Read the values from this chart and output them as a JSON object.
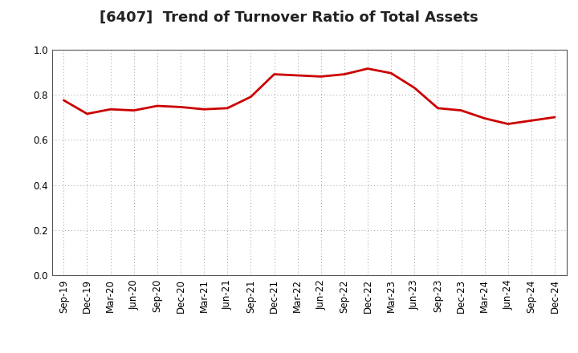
{
  "title": "[6407]  Trend of Turnover Ratio of Total Assets",
  "line_color": "#cc0000",
  "line_width": 2.0,
  "background_color": "#ffffff",
  "grid_color": "#999999",
  "ylim": [
    0.0,
    1.0
  ],
  "yticks": [
    0.0,
    0.2,
    0.4,
    0.6,
    0.8,
    1.0
  ],
  "labels": [
    "Sep-19",
    "Dec-19",
    "Mar-20",
    "Jun-20",
    "Sep-20",
    "Dec-20",
    "Mar-21",
    "Jun-21",
    "Sep-21",
    "Dec-21",
    "Mar-22",
    "Jun-22",
    "Sep-22",
    "Dec-22",
    "Mar-23",
    "Jun-23",
    "Sep-23",
    "Dec-23",
    "Mar-24",
    "Jun-24",
    "Sep-24",
    "Dec-24"
  ],
  "values": [
    0.775,
    0.715,
    0.735,
    0.73,
    0.75,
    0.745,
    0.735,
    0.74,
    0.79,
    0.89,
    0.885,
    0.88,
    0.89,
    0.915,
    0.895,
    0.83,
    0.74,
    0.73,
    0.695,
    0.67,
    0.685,
    0.7
  ],
  "title_fontsize": 13,
  "tick_fontsize": 8.5,
  "fig_width": 7.2,
  "fig_height": 4.4,
  "dpi": 100
}
